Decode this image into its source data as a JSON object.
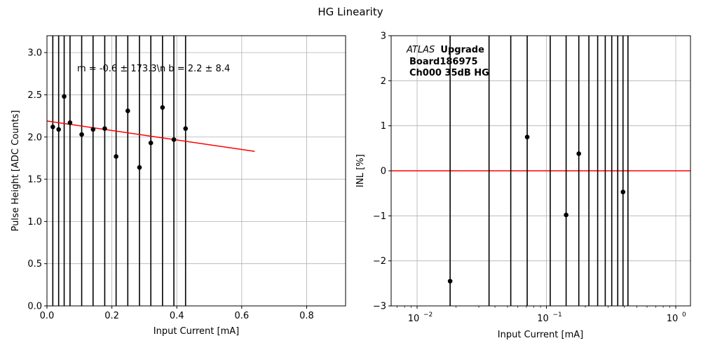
{
  "figure": {
    "title": "HG Linearity"
  },
  "chart_data": [
    {
      "type": "scatter",
      "xlabel": "Input Current [mA]",
      "ylabel": "Pulse Height [ADC Counts]",
      "xlim": [
        0,
        0.92
      ],
      "ylim": [
        0,
        3.2
      ],
      "xscale": "linear",
      "xticks": [
        0,
        0.2,
        0.4,
        0.6,
        0.8
      ],
      "xtick_labels": [
        "0.0",
        "0.2",
        "0.4",
        "0.6",
        "0.8"
      ],
      "yticks": [
        0,
        0.5,
        1.0,
        1.5,
        2.0,
        2.5,
        3.0
      ],
      "ytick_labels": [
        "0.0",
        "0.5",
        "1.0",
        "1.5",
        "2.0",
        "2.5",
        "3.0"
      ],
      "grid": true,
      "points": [
        {
          "x": 0.018,
          "y": 2.12
        },
        {
          "x": 0.036,
          "y": 2.09
        },
        {
          "x": 0.053,
          "y": 2.48
        },
        {
          "x": 0.071,
          "y": 2.17
        },
        {
          "x": 0.107,
          "y": 2.03
        },
        {
          "x": 0.142,
          "y": 2.09
        },
        {
          "x": 0.178,
          "y": 2.1
        },
        {
          "x": 0.213,
          "y": 1.77
        },
        {
          "x": 0.249,
          "y": 2.31
        },
        {
          "x": 0.285,
          "y": 1.64
        },
        {
          "x": 0.32,
          "y": 1.93
        },
        {
          "x": 0.356,
          "y": 2.35
        },
        {
          "x": 0.391,
          "y": 1.97
        },
        {
          "x": 0.427,
          "y": 2.1
        }
      ],
      "vertical_error_lines_x": [
        0.018,
        0.036,
        0.053,
        0.071,
        0.107,
        0.142,
        0.178,
        0.213,
        0.249,
        0.285,
        0.32,
        0.356,
        0.391,
        0.427
      ],
      "fit": {
        "x": [
          0,
          0.64
        ],
        "y": [
          2.19,
          1.83
        ],
        "color": "#ff0000"
      },
      "annotation": "m = -0.6 ± 173.3\\n b = 2.2 ± 8.4"
    },
    {
      "type": "scatter",
      "xlabel": "Input Current [mA]",
      "ylabel": "INL [%]",
      "xscale": "log",
      "xlim": [
        0.0063,
        1.3
      ],
      "ylim": [
        -3,
        3
      ],
      "xticks": [
        0.01,
        0.1,
        1
      ],
      "xtick_labels": [
        "10",
        "10",
        "10"
      ],
      "xtick_exponents": [
        "−2",
        "−1",
        "0"
      ],
      "yticks": [
        -3,
        -2,
        -1,
        0,
        1,
        2,
        3
      ],
      "ytick_labels": [
        "−3",
        "−2",
        "−1",
        "0",
        "1",
        "2",
        "3"
      ],
      "grid": true,
      "points": [
        {
          "x": 0.018,
          "y": -2.45
        },
        {
          "x": 0.071,
          "y": 0.75
        },
        {
          "x": 0.142,
          "y": -0.98
        },
        {
          "x": 0.178,
          "y": 0.38
        },
        {
          "x": 0.391,
          "y": -0.47
        }
      ],
      "vertical_error_lines_x": [
        0.018,
        0.036,
        0.053,
        0.071,
        0.107,
        0.142,
        0.178,
        0.213,
        0.249,
        0.285,
        0.32,
        0.356,
        0.391,
        0.427
      ],
      "reference_line": {
        "y": 0,
        "color": "#ff0000"
      },
      "annotation": {
        "atlas": "ATLAS",
        "upgrade": "Upgrade",
        "board": "Board186975",
        "channel": "Ch000 35dB HG"
      }
    }
  ]
}
